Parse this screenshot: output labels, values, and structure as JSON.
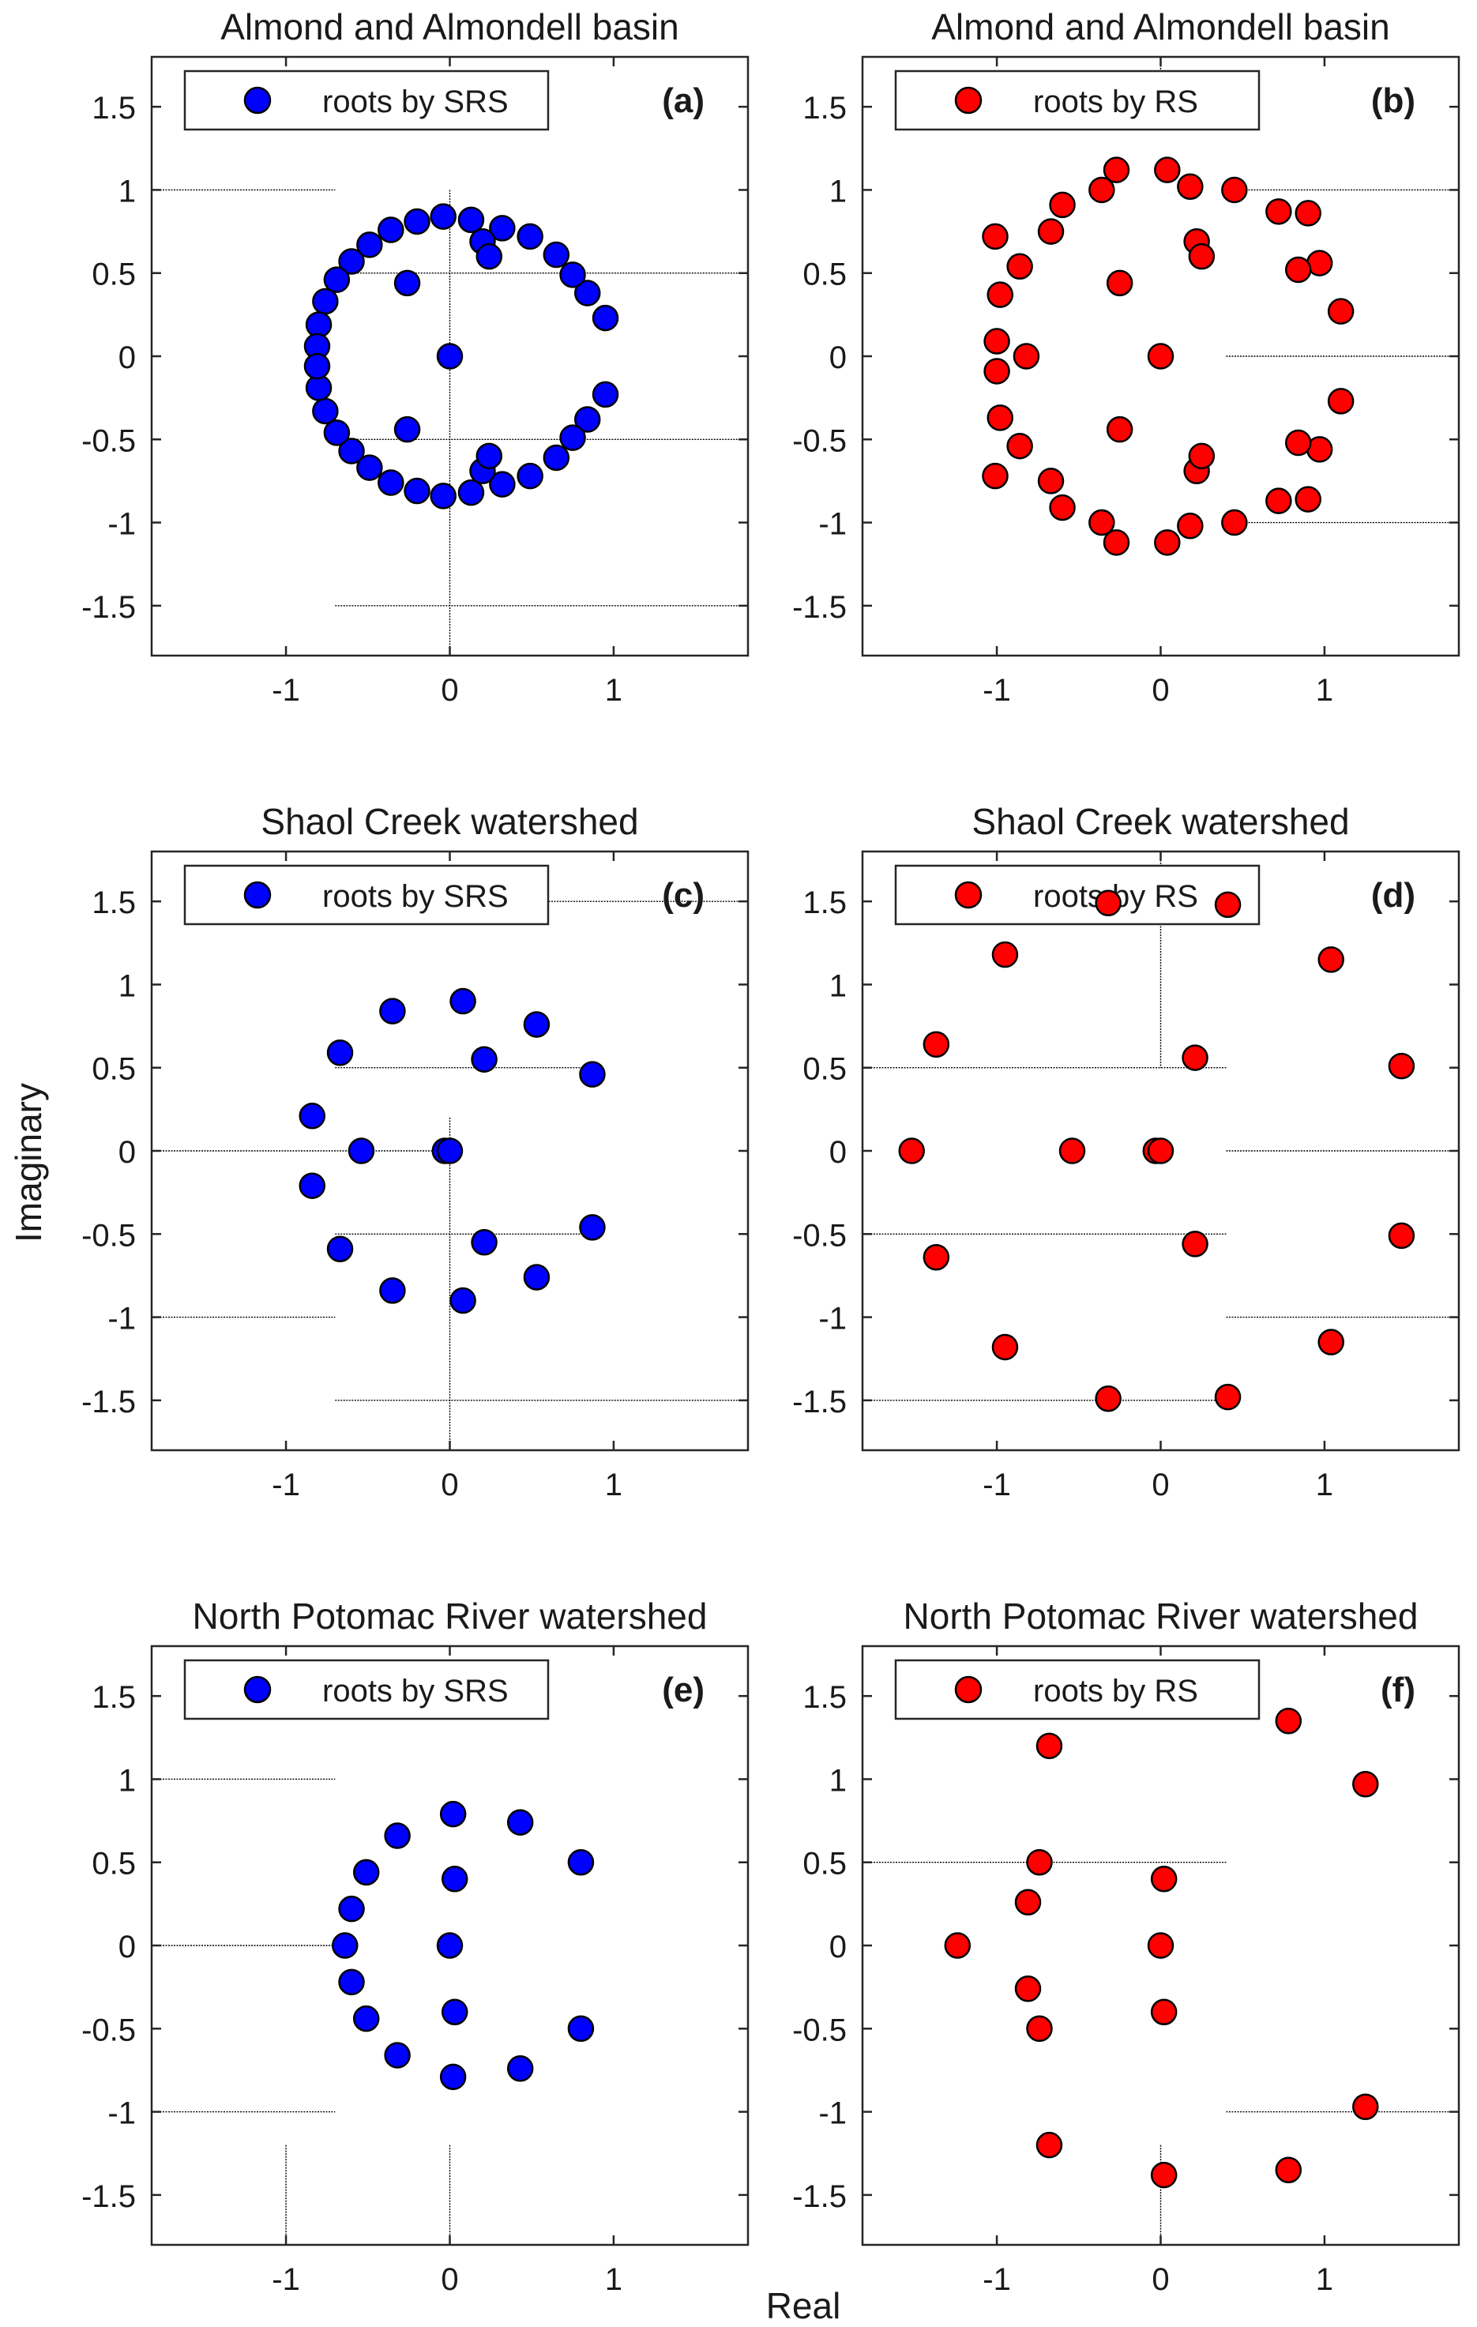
{
  "figure": {
    "xlabel": "Real",
    "ylabel": "Imaginary"
  },
  "colors": {
    "srs": "#0000ff",
    "rs": "#ff0000",
    "marker_edge": "#000000",
    "guide_line": "#000000",
    "axes": "#262626"
  },
  "chart_data": [
    {
      "id": "a",
      "type": "scatter",
      "title": "Almond and Almondell basin",
      "panel_label": "(a)",
      "legend": "roots by SRS",
      "color": "#0000ff",
      "xlim": [
        -1.82,
        1.82
      ],
      "ylim": [
        -1.8,
        1.8
      ],
      "xticks": [
        -1,
        0,
        1
      ],
      "yticks": [
        1.5,
        1,
        0.5,
        0,
        -0.5,
        -1,
        -1.5
      ],
      "guides": [
        {
          "x1": -1.82,
          "y1": 1,
          "x2": -0.7,
          "y2": 1
        },
        {
          "x1": 0,
          "y1": 1.0,
          "x2": 0,
          "y2": -1.82
        },
        {
          "x1": -0.7,
          "y1": 0.5,
          "x2": 1.82,
          "y2": 0.5
        },
        {
          "x1": -0.7,
          "y1": -0.5,
          "x2": 1.82,
          "y2": -0.5
        },
        {
          "x1": -0.7,
          "y1": -1.5,
          "x2": 1.82,
          "y2": -1.5
        }
      ],
      "points": [
        [
          0.95,
          0.23
        ],
        [
          0.95,
          -0.23
        ],
        [
          0.84,
          0.38
        ],
        [
          0.84,
          -0.38
        ],
        [
          0.75,
          0.49
        ],
        [
          0.75,
          -0.49
        ],
        [
          0.65,
          0.61
        ],
        [
          0.65,
          -0.61
        ],
        [
          0.49,
          0.72
        ],
        [
          0.49,
          -0.72
        ],
        [
          0.32,
          0.77
        ],
        [
          0.32,
          -0.77
        ],
        [
          0.13,
          0.82
        ],
        [
          0.13,
          -0.82
        ],
        [
          -0.04,
          0.84
        ],
        [
          -0.04,
          -0.84
        ],
        [
          -0.2,
          0.81
        ],
        [
          -0.2,
          -0.81
        ],
        [
          -0.36,
          0.76
        ],
        [
          -0.36,
          -0.76
        ],
        [
          -0.49,
          0.67
        ],
        [
          -0.49,
          -0.67
        ],
        [
          -0.6,
          0.57
        ],
        [
          -0.6,
          -0.57
        ],
        [
          -0.69,
          0.46
        ],
        [
          -0.69,
          -0.46
        ],
        [
          -0.76,
          0.33
        ],
        [
          -0.76,
          -0.33
        ],
        [
          -0.8,
          0.19
        ],
        [
          -0.8,
          -0.19
        ],
        [
          -0.81,
          0.06
        ],
        [
          -0.81,
          -0.06
        ],
        [
          0.2,
          0.69
        ],
        [
          0.2,
          -0.69
        ],
        [
          0.24,
          0.6
        ],
        [
          0.24,
          -0.6
        ],
        [
          -0.26,
          0.44
        ],
        [
          -0.26,
          -0.44
        ],
        [
          0.0,
          0.0
        ]
      ]
    },
    {
      "id": "b",
      "type": "scatter",
      "title": "Almond and Almondell basin",
      "panel_label": "(b)",
      "legend": "roots by RS",
      "color": "#ff0000",
      "xlim": [
        -1.82,
        1.82
      ],
      "ylim": [
        -1.8,
        1.8
      ],
      "xticks": [
        -1,
        0,
        1
      ],
      "yticks": [
        1.5,
        1,
        0.5,
        0,
        -0.5,
        -1,
        -1.5
      ],
      "guides": [
        {
          "x1": 0,
          "y1": 1.8,
          "x2": 0,
          "y2": 1.4
        },
        {
          "x1": 0.4,
          "y1": 1,
          "x2": 1.82,
          "y2": 1
        },
        {
          "x1": 0.4,
          "y1": 0,
          "x2": 1.82,
          "y2": 0
        },
        {
          "x1": 0.4,
          "y1": -1,
          "x2": 1.82,
          "y2": -1
        }
      ],
      "points": [
        [
          1.1,
          0.27
        ],
        [
          1.1,
          -0.27
        ],
        [
          0.97,
          0.56
        ],
        [
          0.97,
          -0.56
        ],
        [
          0.9,
          0.86
        ],
        [
          0.9,
          -0.86
        ],
        [
          0.84,
          0.52
        ],
        [
          0.84,
          -0.52
        ],
        [
          0.72,
          0.87
        ],
        [
          0.72,
          -0.87
        ],
        [
          0.45,
          1.0
        ],
        [
          0.45,
          -1.0
        ],
        [
          0.18,
          1.02
        ],
        [
          0.18,
          -1.02
        ],
        [
          0.04,
          1.12
        ],
        [
          0.04,
          -1.12
        ],
        [
          -0.27,
          1.12
        ],
        [
          -0.27,
          -1.12
        ],
        [
          -0.36,
          1.0
        ],
        [
          -0.36,
          -1.0
        ],
        [
          -0.6,
          0.91
        ],
        [
          -0.6,
          -0.91
        ],
        [
          -0.67,
          0.75
        ],
        [
          -0.67,
          -0.75
        ],
        [
          -0.86,
          0.54
        ],
        [
          -0.86,
          -0.54
        ],
        [
          -0.98,
          0.37
        ],
        [
          -0.98,
          -0.37
        ],
        [
          -1.01,
          0.72
        ],
        [
          -1.01,
          -0.72
        ],
        [
          -1.0,
          0.09
        ],
        [
          -1.0,
          -0.09
        ],
        [
          -0.82,
          0.0
        ],
        [
          0.22,
          0.69
        ],
        [
          0.22,
          -0.69
        ],
        [
          0.25,
          0.6
        ],
        [
          0.25,
          -0.6
        ],
        [
          -0.25,
          0.44
        ],
        [
          -0.25,
          -0.44
        ],
        [
          0.0,
          0.0
        ]
      ]
    },
    {
      "id": "c",
      "type": "scatter",
      "title": "Shaol Creek watershed",
      "panel_label": "(c)",
      "legend": "roots by SRS",
      "color": "#0000ff",
      "xlim": [
        -1.82,
        1.82
      ],
      "ylim": [
        -1.8,
        1.8
      ],
      "xticks": [
        -1,
        0,
        1
      ],
      "yticks": [
        1.5,
        1,
        0.5,
        0,
        -0.5,
        -1,
        -1.5
      ],
      "guides": [
        {
          "x1": 0.4,
          "y1": 1.5,
          "x2": 1.82,
          "y2": 1.5
        },
        {
          "x1": -0.7,
          "y1": 0.5,
          "x2": 0.9,
          "y2": 0.5
        },
        {
          "x1": -1.82,
          "y1": 0,
          "x2": 0,
          "y2": 0
        },
        {
          "x1": 0,
          "y1": 0.2,
          "x2": 0,
          "y2": -1.82
        },
        {
          "x1": -0.7,
          "y1": -0.5,
          "x2": 0.9,
          "y2": -0.5
        },
        {
          "x1": -1.82,
          "y1": -1,
          "x2": -0.7,
          "y2": -1
        },
        {
          "x1": -0.7,
          "y1": -1.5,
          "x2": 1.82,
          "y2": -1.5
        }
      ],
      "points": [
        [
          0.87,
          0.46
        ],
        [
          0.87,
          -0.46
        ],
        [
          0.53,
          0.76
        ],
        [
          0.53,
          -0.76
        ],
        [
          0.08,
          0.9
        ],
        [
          0.08,
          -0.9
        ],
        [
          -0.35,
          0.84
        ],
        [
          -0.35,
          -0.84
        ],
        [
          -0.67,
          0.59
        ],
        [
          -0.67,
          -0.59
        ],
        [
          -0.84,
          0.21
        ],
        [
          -0.84,
          -0.21
        ],
        [
          0.21,
          0.55
        ],
        [
          0.21,
          -0.55
        ],
        [
          -0.54,
          0.0
        ],
        [
          -0.03,
          0.0
        ],
        [
          0.0,
          0.0
        ]
      ]
    },
    {
      "id": "d",
      "type": "scatter",
      "title": "Shaol Creek watershed",
      "panel_label": "(d)",
      "legend": "roots by RS",
      "color": "#ff0000",
      "xlim": [
        -1.82,
        1.82
      ],
      "ylim": [
        -1.8,
        1.8
      ],
      "xticks": [
        -1,
        0,
        1
      ],
      "yticks": [
        1.5,
        1,
        0.5,
        0,
        -0.5,
        -1,
        -1.5
      ],
      "guides": [
        {
          "x1": 0,
          "y1": 1.8,
          "x2": 0,
          "y2": 0.5
        },
        {
          "x1": -1.82,
          "y1": 0.5,
          "x2": 0.4,
          "y2": 0.5
        },
        {
          "x1": 0.4,
          "y1": 0,
          "x2": 1.82,
          "y2": 0
        },
        {
          "x1": -1.82,
          "y1": -0.5,
          "x2": 0.4,
          "y2": -0.5
        },
        {
          "x1": 0.4,
          "y1": -1,
          "x2": 1.82,
          "y2": -1
        },
        {
          "x1": -1.82,
          "y1": -1.5,
          "x2": 0.4,
          "y2": -1.5
        }
      ],
      "points": [
        [
          1.47,
          0.51
        ],
        [
          1.47,
          -0.51
        ],
        [
          1.04,
          1.15
        ],
        [
          1.04,
          -1.15
        ],
        [
          0.41,
          1.48
        ],
        [
          0.41,
          -1.48
        ],
        [
          -0.32,
          1.49
        ],
        [
          -0.32,
          -1.49
        ],
        [
          -0.95,
          1.18
        ],
        [
          -0.95,
          -1.18
        ],
        [
          -1.37,
          0.64
        ],
        [
          -1.37,
          -0.64
        ],
        [
          -1.52,
          0.0
        ],
        [
          0.21,
          0.56
        ],
        [
          0.21,
          -0.56
        ],
        [
          -0.54,
          0.0
        ],
        [
          -0.03,
          0.0
        ],
        [
          0.0,
          0.0
        ]
      ]
    },
    {
      "id": "e",
      "type": "scatter",
      "title": "North Potomac River watershed",
      "panel_label": "(e)",
      "legend": "roots by SRS",
      "color": "#0000ff",
      "xlim": [
        -1.82,
        1.82
      ],
      "ylim": [
        -1.8,
        1.8
      ],
      "xticks": [
        -1,
        0,
        1
      ],
      "yticks": [
        1.5,
        1,
        0.5,
        0,
        -0.5,
        -1,
        -1.5
      ],
      "guides": [
        {
          "x1": -1.82,
          "y1": 1,
          "x2": -0.7,
          "y2": 1
        },
        {
          "x1": -1.82,
          "y1": 0,
          "x2": -0.7,
          "y2": 0
        },
        {
          "x1": -1.82,
          "y1": -1,
          "x2": -0.7,
          "y2": -1
        },
        {
          "x1": -1,
          "y1": -1.2,
          "x2": -1,
          "y2": -1.82
        },
        {
          "x1": 0,
          "y1": -1.2,
          "x2": 0,
          "y2": -1.82
        }
      ],
      "points": [
        [
          0.8,
          0.5
        ],
        [
          0.8,
          -0.5
        ],
        [
          0.43,
          0.74
        ],
        [
          0.43,
          -0.74
        ],
        [
          0.02,
          0.79
        ],
        [
          0.02,
          -0.79
        ],
        [
          -0.32,
          0.66
        ],
        [
          -0.32,
          -0.66
        ],
        [
          -0.51,
          0.44
        ],
        [
          -0.51,
          -0.44
        ],
        [
          -0.6,
          0.22
        ],
        [
          -0.6,
          -0.22
        ],
        [
          -0.64,
          0.0
        ],
        [
          0.03,
          0.4
        ],
        [
          0.03,
          -0.4
        ],
        [
          0.0,
          0.0
        ]
      ]
    },
    {
      "id": "f",
      "type": "scatter",
      "title": "North Potomac River watershed",
      "panel_label": "(f)",
      "legend": "roots by RS",
      "color": "#ff0000",
      "xlim": [
        -1.82,
        1.82
      ],
      "ylim": [
        -1.8,
        1.8
      ],
      "xticks": [
        -1,
        0,
        1
      ],
      "yticks": [
        1.5,
        1,
        0.5,
        0,
        -0.5,
        -1,
        -1.5
      ],
      "guides": [
        {
          "x1": -1.82,
          "y1": 0.5,
          "x2": 0.4,
          "y2": 0.5
        },
        {
          "x1": 0.4,
          "y1": -1,
          "x2": 1.82,
          "y2": -1
        },
        {
          "x1": 0,
          "y1": -1.2,
          "x2": 0,
          "y2": -1.82
        }
      ],
      "points": [
        [
          1.25,
          0.97
        ],
        [
          1.25,
          -0.97
        ],
        [
          0.78,
          1.35
        ],
        [
          0.78,
          -1.35
        ],
        [
          0.02,
          0.4
        ],
        [
          0.02,
          -0.4
        ],
        [
          -0.68,
          1.2
        ],
        [
          -0.68,
          -1.2
        ],
        [
          -0.74,
          0.5
        ],
        [
          -0.74,
          -0.5
        ],
        [
          -0.81,
          0.26
        ],
        [
          -0.81,
          -0.26
        ],
        [
          -1.24,
          0.0
        ],
        [
          0.0,
          0.0
        ],
        [
          0.02,
          -1.38
        ]
      ]
    }
  ]
}
